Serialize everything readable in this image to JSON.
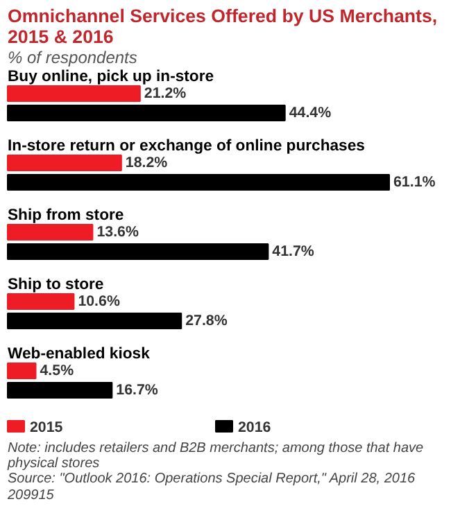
{
  "chart_data": {
    "type": "bar",
    "orientation": "horizontal",
    "title": "Omnichannel Services Offered by US Merchants, 2015 & 2016",
    "subtitle": "% of respondents",
    "categories": [
      "Buy online, pick up in-store",
      "In-store return or exchange of online purchases",
      "Ship from store",
      "Ship to store",
      "Web-enabled kiosk"
    ],
    "series": [
      {
        "name": "2015",
        "color": "#ee1c25",
        "values": [
          21.2,
          18.2,
          13.6,
          10.6,
          4.5
        ],
        "value_labels": [
          "21.2%",
          "18.2%",
          "13.6%",
          "10.6%",
          "4.5%"
        ]
      },
      {
        "name": "2016",
        "color": "#000000",
        "values": [
          44.4,
          61.1,
          41.7,
          27.8,
          16.7
        ],
        "value_labels": [
          "44.4%",
          "61.1%",
          "41.7%",
          "27.8%",
          "16.7%"
        ]
      }
    ],
    "legend": "bottom",
    "annotations": [
      "Note: includes retailers and B2B merchants; among those that have physical stores",
      "Source: \"Outlook 2016: Operations Special Report,\" April 28, 2016",
      "209915"
    ]
  }
}
